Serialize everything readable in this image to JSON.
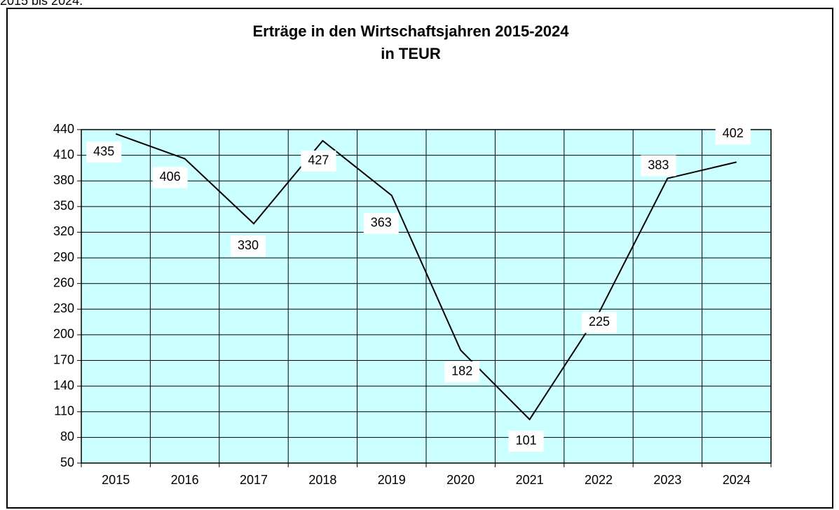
{
  "page_text": "2015 bis 2024.",
  "chart_data": {
    "type": "line",
    "title": [
      "Erträge in den Wirtschaftsjahren  2015-2024",
      "in TEUR"
    ],
    "categories": [
      "2015",
      "2016",
      "2017",
      "2018",
      "2019",
      "2020",
      "2021",
      "2022",
      "2023",
      "2024"
    ],
    "series": [
      {
        "color": "#000000",
        "values": [
          435,
          406,
          330,
          427,
          363,
          182,
          101,
          225,
          383,
          402
        ]
      }
    ],
    "ylim": [
      50,
      440
    ],
    "yticks": [
      50,
      80,
      110,
      140,
      170,
      200,
      230,
      260,
      290,
      320,
      350,
      380,
      410,
      440
    ],
    "grid": true,
    "plot_background": "#ccffff"
  }
}
